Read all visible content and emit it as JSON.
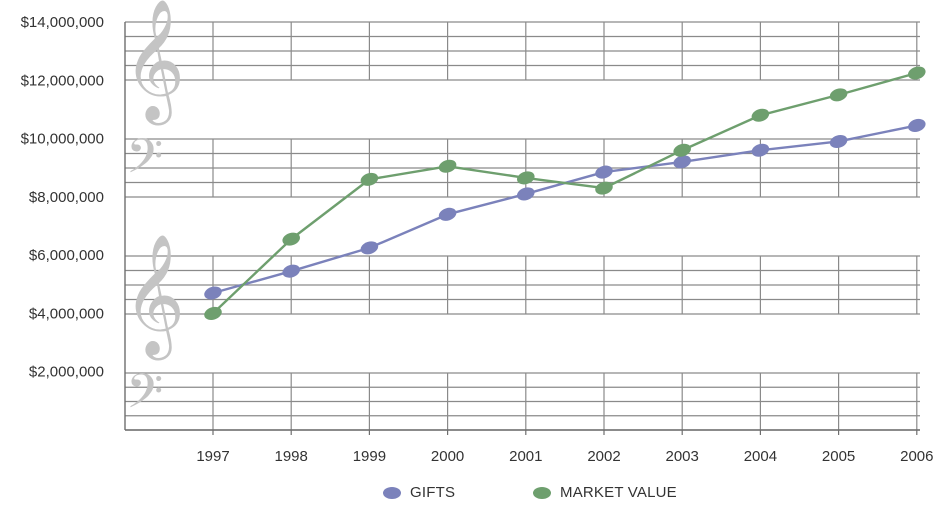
{
  "chart_data": {
    "type": "line",
    "title": "",
    "xlabel": "",
    "ylabel": "",
    "categories": [
      "1997",
      "1998",
      "1999",
      "2000",
      "2001",
      "2002",
      "2003",
      "2004",
      "2005",
      "2006"
    ],
    "y_ticks": [
      "$2,000,000",
      "$4,000,000",
      "$6,000,000",
      "$8,000,000",
      "$10,000,000",
      "$12,000,000",
      "$14,000,000"
    ],
    "ylim": [
      0,
      14000000
    ],
    "grid": true,
    "legend_position": "bottom",
    "series": [
      {
        "name": "GIFTS",
        "color": "#7b82bb",
        "values": [
          4700000,
          5450000,
          6250000,
          7400000,
          8100000,
          8850000,
          9200000,
          9600000,
          9900000,
          10450000
        ]
      },
      {
        "name": "MARKET VALUE",
        "color": "#6e9f6e",
        "values": [
          4000000,
          6550000,
          8600000,
          9050000,
          8650000,
          8300000,
          9600000,
          10800000,
          11500000,
          12250000
        ]
      }
    ],
    "colors": {
      "grid": "#8a8a8a",
      "clef": "#c4c4c4"
    },
    "decorative_icons": [
      "treble-clef-icon",
      "bass-clef-icon"
    ]
  }
}
